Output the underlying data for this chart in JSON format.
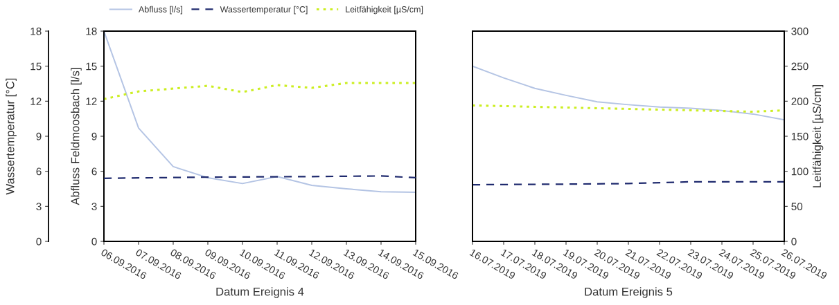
{
  "chart_data": [
    {
      "type": "line",
      "xlabel": "Datum Ereignis 4",
      "ylabel": "Abfluss Feldmoosbach [l/s]",
      "y3label": "Wassertemperatur [°C]",
      "legend": "top",
      "grid": false,
      "xlim": [
        "2016-09-06",
        "2016-09-15"
      ],
      "xticks": [
        {
          "value": "2016-09-06",
          "label": "06.09.2016"
        },
        {
          "value": "2016-09-07",
          "label": "07.09.2016"
        },
        {
          "value": "2016-09-08",
          "label": "08.09.2016"
        },
        {
          "value": "2016-09-09",
          "label": "09.09.2016"
        },
        {
          "value": "2016-09-10",
          "label": "10.09.2016"
        },
        {
          "value": "2016-09-11",
          "label": "11.09.2016"
        },
        {
          "value": "2016-09-12",
          "label": "12.09.2016"
        },
        {
          "value": "2016-09-13",
          "label": "13.09.2016"
        },
        {
          "value": "2016-09-14",
          "label": "14.09.2016"
        },
        {
          "value": "2016-09-15",
          "label": "15.09.2016"
        }
      ],
      "ylim": [
        0,
        18
      ],
      "yticks": [
        0,
        3,
        6,
        9,
        12,
        15,
        18
      ],
      "y2lim": [
        0,
        300
      ],
      "y3lim": [
        0,
        18
      ],
      "y3ticks": [
        0,
        3,
        6,
        9,
        12,
        15,
        18
      ],
      "series": [
        {
          "name": "Abfluss [l/s]",
          "color": "#b4c4e4",
          "line_style": "solid",
          "x": [
            "2016-09-06",
            "2016-09-07",
            "2016-09-08",
            "2016-09-09",
            "2016-09-10",
            "2016-09-11",
            "2016-09-12",
            "2016-09-13",
            "2016-09-14",
            "2016-09-15"
          ],
          "values": [
            18,
            9.7,
            6.4,
            5.45,
            4.95,
            5.55,
            4.8,
            4.5,
            4.25,
            4.2
          ]
        },
        {
          "name": "Wassertemperatur [°C]",
          "color": "#1f2a6e",
          "line_style": "dashed",
          "axis": "y3",
          "x": [
            "2016-09-06",
            "2016-09-09",
            "2016-09-12",
            "2016-09-14",
            "2016-09-15"
          ],
          "values": [
            5.4,
            5.5,
            5.55,
            5.6,
            5.45
          ]
        },
        {
          "name": "Leitfähigkeit [µS/cm]",
          "color": "#ccee22",
          "line_style": "dotted",
          "axis": "y2",
          "x": [
            "2016-09-06",
            "2016-09-07",
            "2016-09-08",
            "2016-09-09",
            "2016-09-10",
            "2016-09-11",
            "2016-09-12",
            "2016-09-13",
            "2016-09-15"
          ],
          "values": [
            203,
            214,
            218,
            222,
            213,
            223,
            219,
            226,
            226
          ]
        }
      ]
    },
    {
      "type": "line",
      "xlabel": "Datum Ereignis 5",
      "y2label": "Leitfähigkeit [µS/cm]",
      "grid": false,
      "xlim": [
        "2019-07-16",
        "2019-07-26"
      ],
      "xticks": [
        {
          "value": "2019-07-16",
          "label": "16.07.2019"
        },
        {
          "value": "2019-07-17",
          "label": "17.07.2019"
        },
        {
          "value": "2019-07-18",
          "label": "18.07.2019"
        },
        {
          "value": "2019-07-19",
          "label": "19.07.2019"
        },
        {
          "value": "2019-07-20",
          "label": "20.07.2019"
        },
        {
          "value": "2019-07-21",
          "label": "21.07.2019"
        },
        {
          "value": "2019-07-22",
          "label": "22.07.2019"
        },
        {
          "value": "2019-07-23",
          "label": "23.07.2019"
        },
        {
          "value": "2019-07-24",
          "label": "24.07.2019"
        },
        {
          "value": "2019-07-25",
          "label": "25.07.2019"
        },
        {
          "value": "2019-07-26",
          "label": "26.07.2019"
        }
      ],
      "ylim": [
        0,
        18
      ],
      "y2lim": [
        0,
        300
      ],
      "y2ticks": [
        0,
        50,
        100,
        150,
        200,
        250,
        300
      ],
      "series": [
        {
          "color": "#b4c4e4",
          "line_style": "solid",
          "x": [
            "2019-07-16",
            "2019-07-17",
            "2019-07-18",
            "2019-07-19",
            "2019-07-20",
            "2019-07-21",
            "2019-07-22",
            "2019-07-23",
            "2019-07-24",
            "2019-07-25",
            "2019-07-26"
          ],
          "values": [
            15.0,
            14.0,
            13.1,
            12.5,
            11.95,
            11.7,
            11.5,
            11.4,
            11.2,
            10.9,
            10.4
          ]
        },
        {
          "color": "#1f2a6e",
          "line_style": "dashed",
          "x": [
            "2019-07-16",
            "2019-07-19",
            "2019-07-21",
            "2019-07-23",
            "2019-07-26"
          ],
          "values": [
            4.85,
            4.9,
            4.95,
            5.1,
            5.1
          ]
        },
        {
          "color": "#ccee22",
          "line_style": "dotted",
          "axis": "y2",
          "x": [
            "2019-07-16",
            "2019-07-18",
            "2019-07-20",
            "2019-07-22",
            "2019-07-25",
            "2019-07-26"
          ],
          "values": [
            194,
            192,
            190,
            188,
            185,
            187
          ]
        }
      ]
    }
  ]
}
